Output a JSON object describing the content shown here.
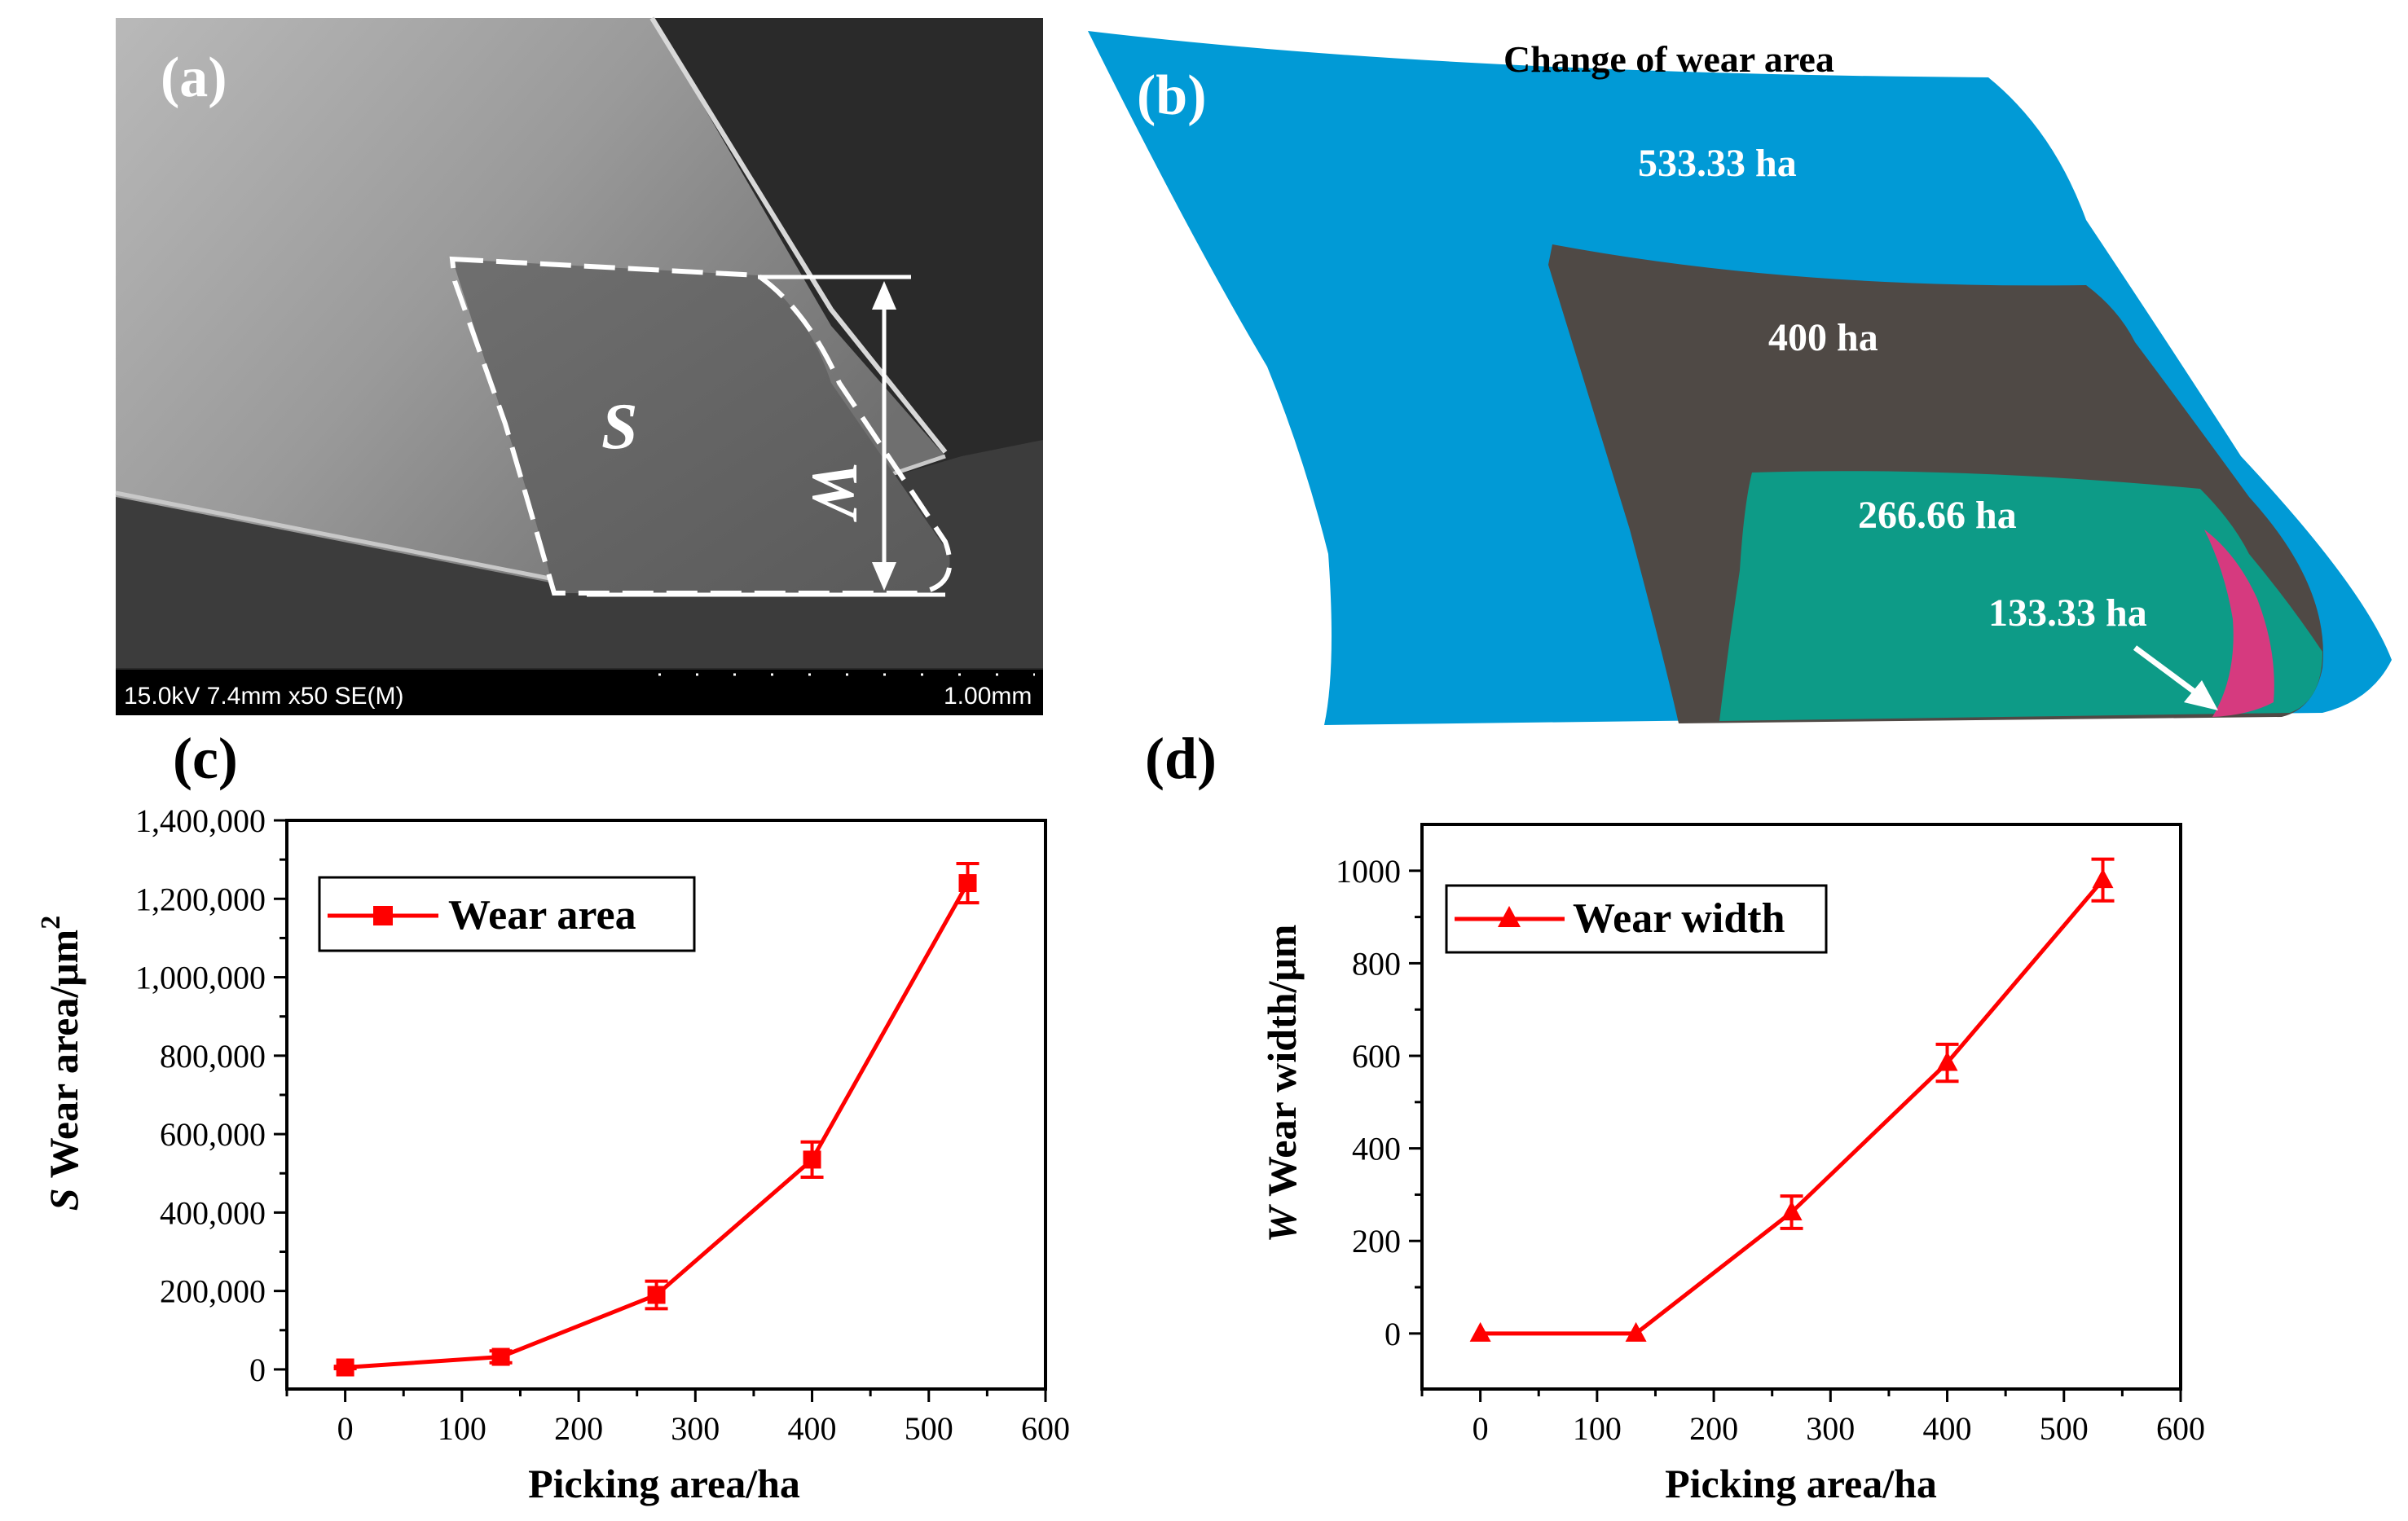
{
  "panel_a": {
    "label": "(a)",
    "s_label": "S",
    "w_label": "W",
    "sem_info": "15.0kV 7.4mm x50 SE(M)",
    "scale_label": "1.00mm"
  },
  "panel_b": {
    "label": "(b)",
    "title": "Change of wear area",
    "regions": [
      {
        "label": "533.33 ha",
        "color": "#019ad6"
      },
      {
        "label": "400 ha",
        "color": "#4f4945"
      },
      {
        "label": "266.66 ha",
        "color": "#0d9b87"
      },
      {
        "label": "133.33 ha",
        "color": "#d63a7f"
      }
    ]
  },
  "panel_c": {
    "label": "(c)"
  },
  "panel_d": {
    "label": "(d)"
  },
  "chart_data": [
    {
      "type": "line",
      "title": "",
      "xlabel": "Picking area/ha",
      "ylabel_prefix": "S",
      "ylabel": "Wear area/μm",
      "ylabel_sup": "2",
      "xlim": [
        -50,
        600
      ],
      "ylim": [
        -50000,
        1400000
      ],
      "xticks": [
        0,
        100,
        200,
        300,
        400,
        500,
        600
      ],
      "xtick_labels": [
        "0",
        "100",
        "200",
        "300",
        "400",
        "500",
        "600"
      ],
      "yticks": [
        0,
        200000,
        400000,
        600000,
        800000,
        1000000,
        1200000,
        1400000
      ],
      "ytick_labels": [
        "0",
        "200,000",
        "400,000",
        "600,000",
        "800,000",
        "1,000,000",
        "1,200,000",
        "1,400,000"
      ],
      "marker": "square",
      "color": "#ff0000",
      "series": [
        {
          "name": "Wear area",
          "x": [
            0,
            133.33,
            266.66,
            400,
            533.33
          ],
          "y": [
            5000,
            32000,
            190000,
            535000,
            1240000
          ],
          "err": [
            3000,
            15000,
            35000,
            45000,
            50000
          ]
        }
      ]
    },
    {
      "type": "line",
      "title": "",
      "xlabel": "Picking area/ha",
      "ylabel_prefix": "W",
      "ylabel": "Wear width/μm",
      "ylabel_sup": "",
      "xlim": [
        -50,
        600
      ],
      "ylim": [
        -120,
        1100
      ],
      "xticks": [
        0,
        100,
        200,
        300,
        400,
        500,
        600
      ],
      "xtick_labels": [
        "0",
        "100",
        "200",
        "300",
        "400",
        "500",
        "600"
      ],
      "yticks": [
        0,
        200,
        400,
        600,
        800,
        1000
      ],
      "ytick_labels": [
        "0",
        "200",
        "400",
        "600",
        "800",
        "1000"
      ],
      "marker": "triangle",
      "color": "#ff0000",
      "series": [
        {
          "name": "Wear width",
          "x": [
            0,
            133.33,
            266.66,
            400,
            533.33
          ],
          "y": [
            0,
            0,
            262,
            585,
            980
          ],
          "err": [
            0,
            0,
            35,
            40,
            45
          ]
        }
      ]
    }
  ]
}
